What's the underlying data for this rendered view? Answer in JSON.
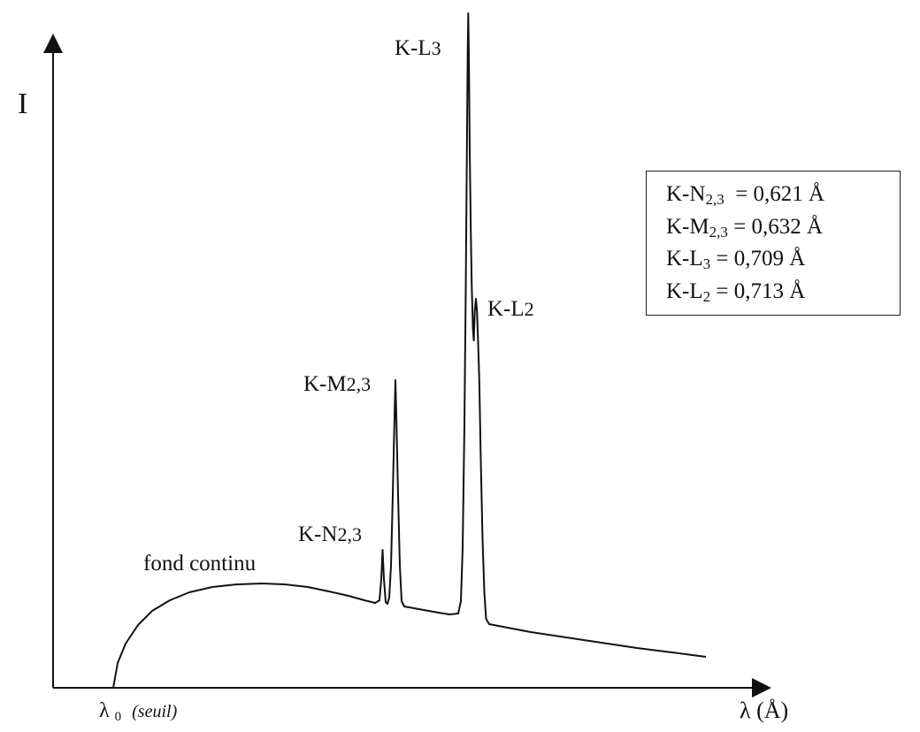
{
  "chart_data": {
    "type": "line",
    "ylabel": "I",
    "xlabel": "λ (Å)",
    "x_start_label": "λ",
    "x_start_sub": "0",
    "x_start_note": "(seuil)",
    "continuum_label": "fond continu",
    "peak_labels": [
      {
        "name": "K-N",
        "sub": "2,3"
      },
      {
        "name": "K-M",
        "sub": "2,3"
      },
      {
        "name": "K-L",
        "sub": "3"
      },
      {
        "name": "K-L",
        "sub": "2"
      }
    ],
    "legend": [
      {
        "name": "K-N",
        "sub": "2,3",
        "value": "= 0,621 Å"
      },
      {
        "name": "K-M",
        "sub": "2,3",
        "value": "= 0,632 Å"
      },
      {
        "name": "K-L",
        "sub": "3",
        "value": "= 0,709 Å"
      },
      {
        "name": "K-L",
        "sub": "2",
        "value": "= 0,713 Å"
      }
    ],
    "peaks_angstrom": {
      "K-N2,3": 0.621,
      "K-M2,3": 0.632,
      "K-L3": 0.709,
      "K-L2": 0.713
    },
    "grid": false,
    "legend_position": "right"
  }
}
